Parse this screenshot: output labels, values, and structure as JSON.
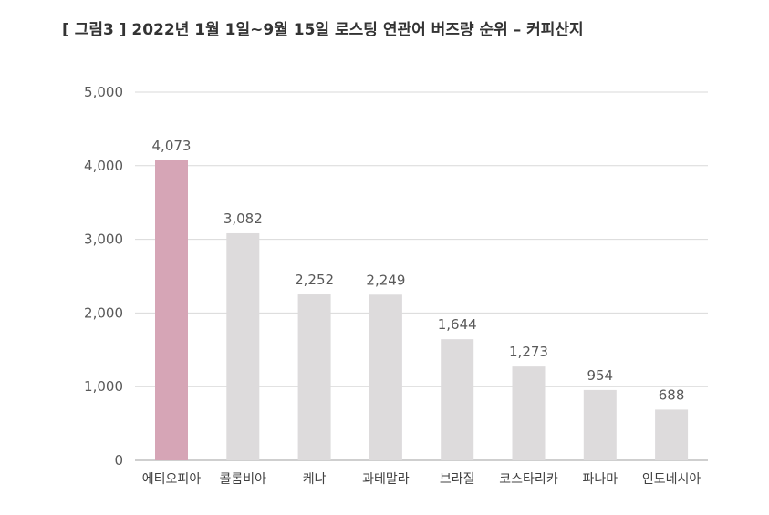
{
  "colors": {
    "highlight_bar": "#d6a5b6",
    "default_bar": "#dddbdc"
  },
  "chart_data": {
    "type": "bar",
    "title": "[ 그림3 ] 2022년 1월 1일~9월 15일 로스팅 연관어 버즈량 순위 – 커피산지",
    "xlabel": "",
    "ylabel": "",
    "ylim": [
      0,
      5000
    ],
    "yticks": [
      0,
      1000,
      2000,
      3000,
      4000,
      5000
    ],
    "ytick_labels": [
      "0",
      "1,000",
      "2,000",
      "3,000",
      "4,000",
      "5,000"
    ],
    "grid": true,
    "categories": [
      "에티오피아",
      "콜롬비아",
      "케냐",
      "과테말라",
      "브라질",
      "코스타리카",
      "파나마",
      "인도네시아"
    ],
    "values": [
      4073,
      3082,
      2252,
      2249,
      1644,
      1273,
      954,
      688
    ],
    "value_labels": [
      "4,073",
      "3,082",
      "2,252",
      "2,249",
      "1,644",
      "1,273",
      "954",
      "688"
    ],
    "highlight_index": 0
  }
}
